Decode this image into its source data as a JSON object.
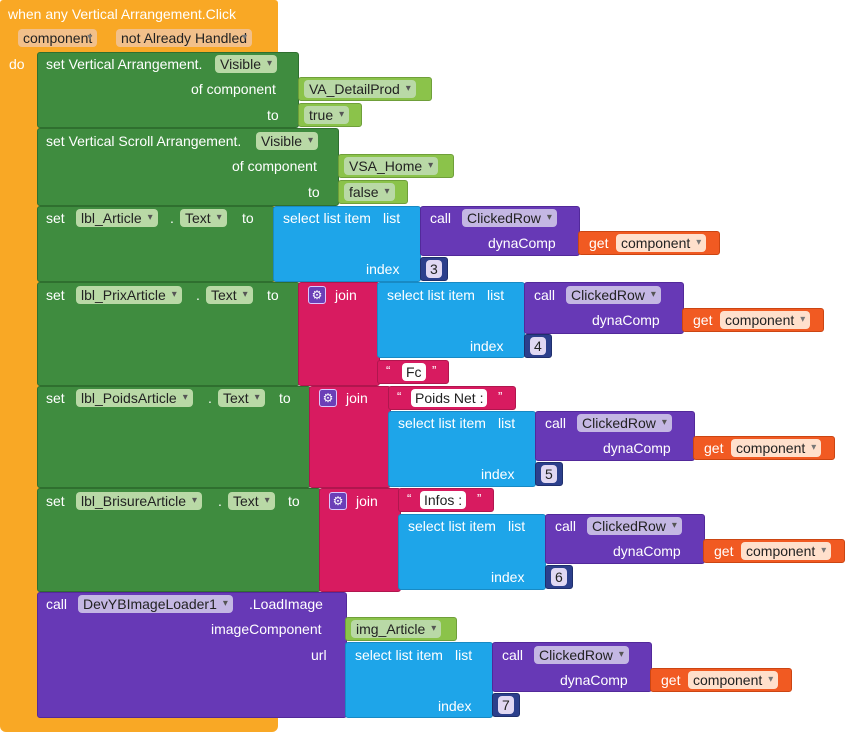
{
  "event": {
    "title": "when any Vertical Arrangement.Click",
    "params": [
      "component",
      "not Already Handled"
    ],
    "do_label": "do"
  },
  "s1": {
    "set_label": "set Vertical Arrangement.",
    "prop": "Visible",
    "of_component_label": "of component",
    "component": "VA_DetailProd",
    "to_label": "to",
    "value": "true"
  },
  "s2": {
    "set_label": "set Vertical Scroll Arrangement.",
    "prop": "Visible",
    "of_component_label": "of component",
    "component": "VSA_Home",
    "to_label": "to",
    "value": "false"
  },
  "s3": {
    "set_label": "set",
    "component": "lbl_Article",
    "dot": ".",
    "prop": "Text",
    "to_label": "to",
    "select_label": "select list item",
    "list_label": "list",
    "call_label": "call",
    "call_name": "ClickedRow",
    "dynacomp_label": "dynaComp",
    "get_label": "get",
    "get_var": "component",
    "index_label": "index",
    "index_value": "3"
  },
  "s4": {
    "set_label": "set",
    "component": "lbl_PrixArticle",
    "dot": ".",
    "prop": "Text",
    "to_label": "to",
    "join_label": "join",
    "select_label": "select list item",
    "list_label": "list",
    "call_label": "call",
    "call_name": "ClickedRow",
    "dynacomp_label": "dynaComp",
    "get_label": "get",
    "get_var": "component",
    "index_label": "index",
    "index_value": "4",
    "string": "Fc"
  },
  "s5": {
    "set_label": "set",
    "component": "lbl_PoidsArticle",
    "dot": ".",
    "prop": "Text",
    "to_label": "to",
    "join_label": "join",
    "string": "Poids Net :",
    "select_label": "select list item",
    "list_label": "list",
    "call_label": "call",
    "call_name": "ClickedRow",
    "dynacomp_label": "dynaComp",
    "get_label": "get",
    "get_var": "component",
    "index_label": "index",
    "index_value": "5"
  },
  "s6": {
    "set_label": "set",
    "component": "lbl_BrisureArticle",
    "dot": ".",
    "prop": "Text",
    "to_label": "to",
    "join_label": "join",
    "string": "Infos :",
    "select_label": "select list item",
    "list_label": "list",
    "call_label": "call",
    "call_name": "ClickedRow",
    "dynacomp_label": "dynaComp",
    "get_label": "get",
    "get_var": "component",
    "index_label": "index",
    "index_value": "6"
  },
  "s7": {
    "call_label": "call",
    "component": "DevYBImageLoader1",
    "method": ".LoadImage",
    "image_component_label": "imageComponent",
    "image_component": "img_Article",
    "url_label": "url",
    "select_label": "select list item",
    "list_label": "list",
    "call_inner_label": "call",
    "call_name": "ClickedRow",
    "dynacomp_label": "dynaComp",
    "get_label": "get",
    "get_var": "component",
    "index_label": "index",
    "index_value": "7"
  },
  "quote_open": "“",
  "quote_close": "”",
  "gear_glyph": "⚙"
}
